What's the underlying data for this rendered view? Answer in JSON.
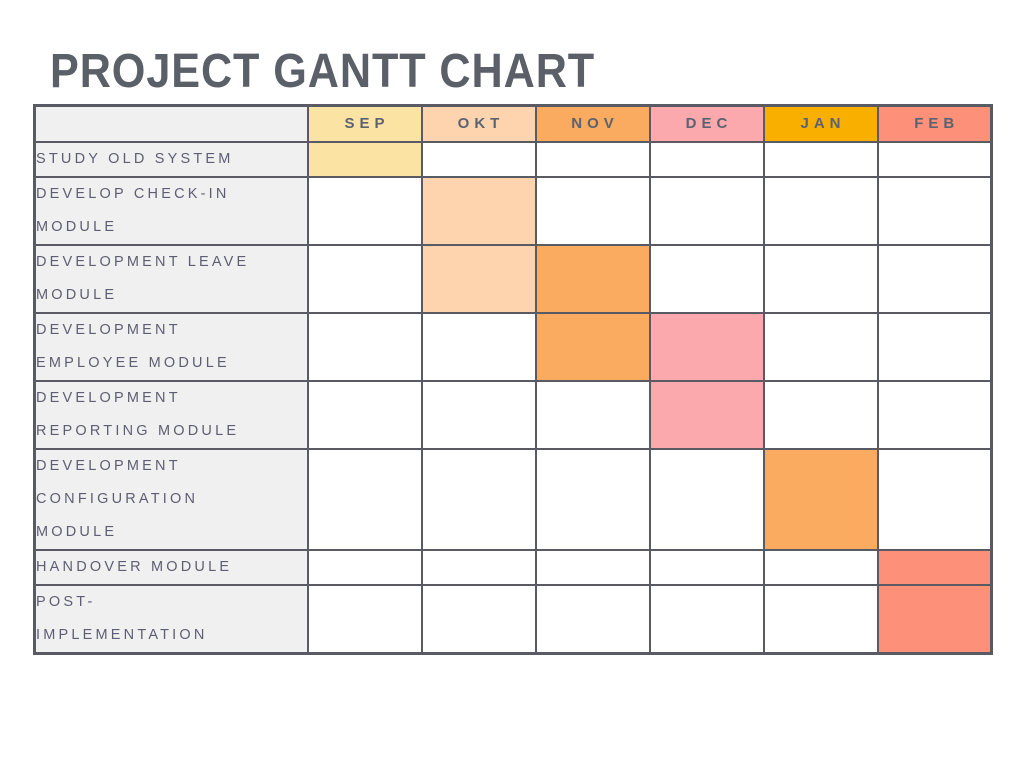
{
  "page": {
    "title": "PROJECT GANTT CHART"
  },
  "colors": {
    "page_bg": "#ffffff",
    "title_text": "#5a5f68",
    "grid_border": "#5a5a64",
    "task_cell_bg": "#f0f0f0",
    "task_text": "#5e5e72",
    "month_header_text": "#5c6270",
    "month_header_fills": {
      "SEP": "#fbe3a4",
      "OKT": "#fdd4ae",
      "NOV": "#faab60",
      "DEC": "#fba9ad",
      "JAN": "#f9af00",
      "FEB": "#fc9078"
    },
    "bar_fills": {
      "SEP": "#fbe3a4",
      "OKT": "#fdd4ae",
      "NOV": "#faab60",
      "DEC": "#fba9ad",
      "JAN": "#faab60",
      "FEB": "#fc9078"
    }
  },
  "chart_data": {
    "type": "table",
    "title": "PROJECT GANTT CHART",
    "columns": [
      "",
      "SEP",
      "OKT",
      "NOV",
      "DEC",
      "JAN",
      "FEB"
    ],
    "months": [
      "SEP",
      "OKT",
      "NOV",
      "DEC",
      "JAN",
      "FEB"
    ],
    "legend": "none",
    "grid": "on",
    "tasks": [
      {
        "name": "STUDY OLD SYSTEM",
        "lines": [
          "STUDY OLD SYSTEM"
        ],
        "active_months": [
          "SEP"
        ]
      },
      {
        "name": "DEVELOP CHECK-IN MODULE",
        "lines": [
          "DEVELOP CHECK-IN",
          "MODULE"
        ],
        "active_months": [
          "OKT"
        ]
      },
      {
        "name": "DEVELOPMENT LEAVE MODULE",
        "lines": [
          "DEVELOPMENT LEAVE",
          "MODULE"
        ],
        "active_months": [
          "OKT",
          "NOV"
        ]
      },
      {
        "name": "DEVELOPMENT EMPLOYEE MODULE",
        "lines": [
          "DEVELOPMENT",
          "EMPLOYEE MODULE"
        ],
        "active_months": [
          "NOV",
          "DEC"
        ]
      },
      {
        "name": "DEVELOPMENT REPORTING MODULE",
        "lines": [
          "DEVELOPMENT",
          "REPORTING MODULE"
        ],
        "active_months": [
          "DEC"
        ]
      },
      {
        "name": "DEVELOPMENT CONFIGURATION MODULE",
        "lines": [
          "DEVELOPMENT",
          "CONFIGURATION",
          "MODULE"
        ],
        "active_months": [
          "JAN"
        ]
      },
      {
        "name": "HANDOVER MODULE",
        "lines": [
          "HANDOVER MODULE"
        ],
        "active_months": [
          "FEB"
        ]
      },
      {
        "name": "POST-IMPLEMENTATION",
        "lines": [
          "POST-",
          "IMPLEMENTATION"
        ],
        "active_months": [
          "FEB"
        ]
      }
    ]
  }
}
